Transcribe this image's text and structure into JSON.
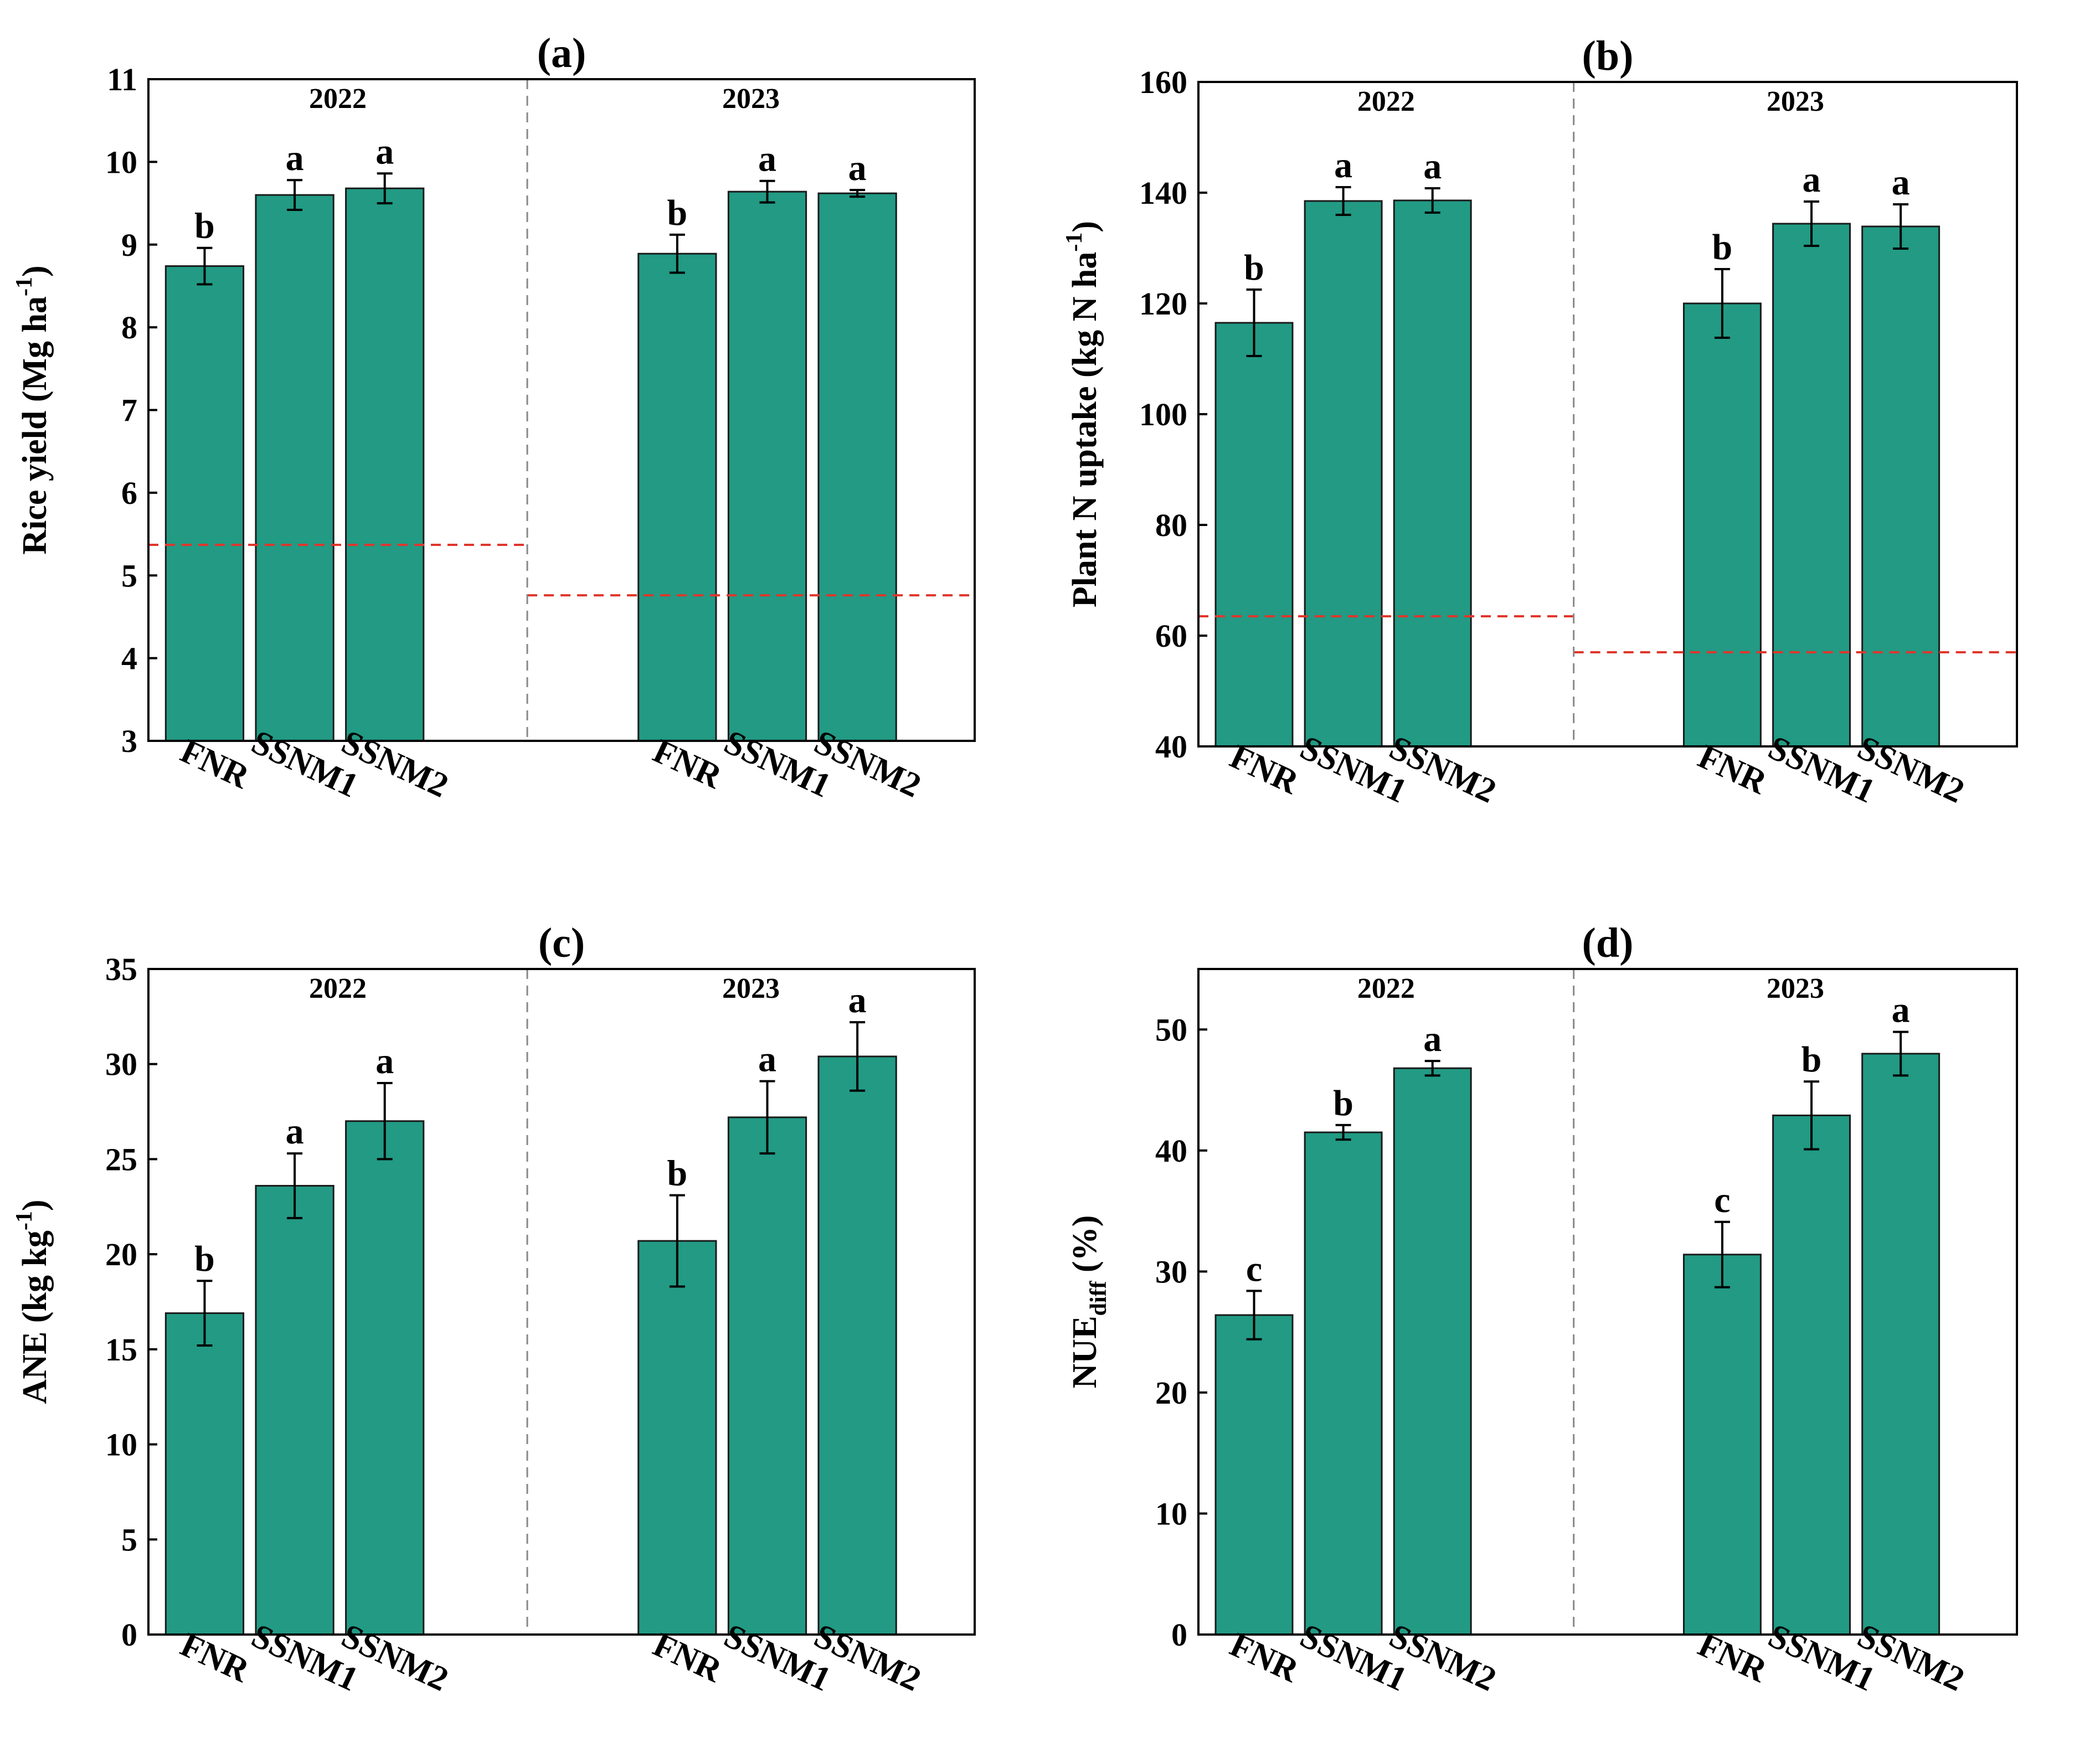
{
  "chart_data": [
    {
      "type": "bar",
      "title": "(a)",
      "ylabel": "Rice yield (Mg ha",
      "ylabel_sup": "-1",
      "ylabel_tail": ")",
      "ylim": [
        3,
        11
      ],
      "yticks": [
        "3",
        "4",
        "5",
        "6",
        "7",
        "8",
        "9",
        "10",
        "11"
      ],
      "groups": [
        {
          "year": "2022",
          "categories": [
            "FNR",
            "SSNM1",
            "SSNM2"
          ],
          "values": [
            8.74,
            9.6,
            9.68
          ],
          "errors": [
            0.22,
            0.18,
            0.18
          ],
          "letters": [
            "b",
            "a",
            "a"
          ],
          "reference": 5.37
        },
        {
          "year": "2023",
          "categories": [
            "FNR",
            "SSNM1",
            "SSNM2"
          ],
          "values": [
            8.89,
            9.64,
            9.62
          ],
          "errors": [
            0.23,
            0.13,
            0.04
          ],
          "letters": [
            "b",
            "a",
            "a"
          ],
          "reference": 4.76
        }
      ],
      "bar_color": "#229A84",
      "reference_color": "#E0362B"
    },
    {
      "type": "bar",
      "title": "(b)",
      "ylabel": "Plant N uptake (kg N ha",
      "ylabel_sup": "-1",
      "ylabel_tail": ")",
      "ylim": [
        40,
        160
      ],
      "yticks": [
        "40",
        "60",
        "80",
        "100",
        "120",
        "140",
        "160"
      ],
      "groups": [
        {
          "year": "2022",
          "categories": [
            "FNR",
            "SSNM1",
            "SSNM2"
          ],
          "values": [
            116.5,
            138.5,
            138.6
          ],
          "errors": [
            6.0,
            2.5,
            2.2
          ],
          "letters": [
            "b",
            "a",
            "a"
          ],
          "reference": 63.5
        },
        {
          "year": "2023",
          "categories": [
            "FNR",
            "SSNM1",
            "SSNM2"
          ],
          "values": [
            120.0,
            134.4,
            133.9
          ],
          "errors": [
            6.2,
            4.0,
            4.0
          ],
          "letters": [
            "b",
            "a",
            "a"
          ],
          "reference": 57.0
        }
      ],
      "bar_color": "#229A84",
      "reference_color": "#E0362B"
    },
    {
      "type": "bar",
      "title": "(c)",
      "ylabel": "ANE (kg kg",
      "ylabel_sup": "-1",
      "ylabel_tail": ")",
      "ylim": [
        0,
        35
      ],
      "yticks": [
        "0",
        "5",
        "10",
        "15",
        "20",
        "25",
        "30",
        "35"
      ],
      "groups": [
        {
          "year": "2022",
          "categories": [
            "FNR",
            "SSNM1",
            "SSNM2"
          ],
          "values": [
            16.9,
            23.6,
            27.0
          ],
          "errors": [
            1.7,
            1.7,
            2.0
          ],
          "letters": [
            "b",
            "a",
            "a"
          ]
        },
        {
          "year": "2023",
          "categories": [
            "FNR",
            "SSNM1",
            "SSNM2"
          ],
          "values": [
            20.7,
            27.2,
            30.4
          ],
          "errors": [
            2.4,
            1.9,
            1.8
          ],
          "letters": [
            "b",
            "a",
            "a"
          ]
        }
      ],
      "bar_color": "#229A84"
    },
    {
      "type": "bar",
      "title": "(d)",
      "ylabel": "NUE",
      "ylabel_sub": "diff",
      "ylabel_tail": " (%)",
      "ylim": [
        0,
        55
      ],
      "yticks": [
        "0",
        "10",
        "20",
        "30",
        "40",
        "50"
      ],
      "groups": [
        {
          "year": "2022",
          "categories": [
            "FNR",
            "SSNM1",
            "SSNM2"
          ],
          "values": [
            26.4,
            41.5,
            46.8
          ],
          "errors": [
            2.0,
            0.6,
            0.6
          ],
          "letters": [
            "c",
            "b",
            "a"
          ]
        },
        {
          "year": "2023",
          "categories": [
            "FNR",
            "SSNM1",
            "SSNM2"
          ],
          "values": [
            31.4,
            42.9,
            48.0
          ],
          "errors": [
            2.7,
            2.8,
            1.8
          ],
          "letters": [
            "c",
            "b",
            "a"
          ]
        }
      ],
      "bar_color": "#229A84"
    }
  ]
}
